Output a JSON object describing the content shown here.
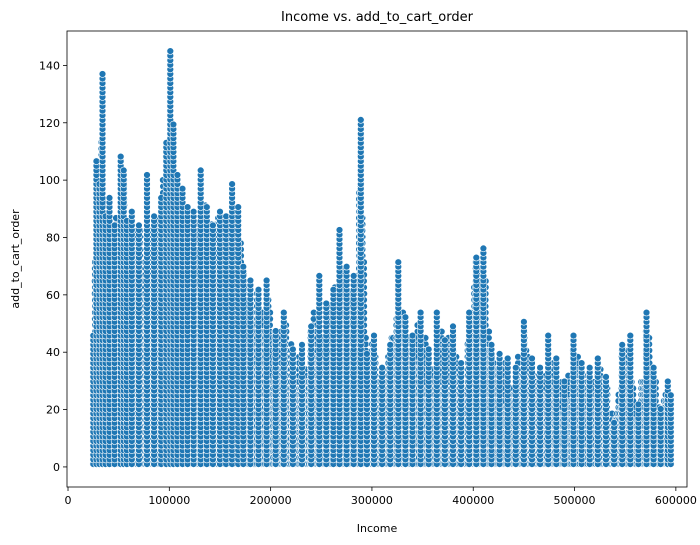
{
  "chart_data": {
    "type": "scatter",
    "title": "Income vs. add_to_cart_order",
    "xlabel": "Income",
    "ylabel": "add_to_cart_order",
    "xlim": [
      -1000,
      611000
    ],
    "ylim": [
      -7,
      152
    ],
    "xticks": [
      0,
      100000,
      200000,
      300000,
      400000,
      500000,
      600000
    ],
    "xtick_labels": [
      "0",
      "100000",
      "200000",
      "300000",
      "400000",
      "500000",
      "600000"
    ],
    "yticks": [
      0,
      20,
      40,
      60,
      80,
      100,
      120,
      140
    ],
    "ytick_labels": [
      "0",
      "20",
      "40",
      "60",
      "80",
      "100",
      "120",
      "140"
    ],
    "grid": false,
    "marker_color": "#1f77b4",
    "marker_edge_color": "#ffffff",
    "series_max_profile": {
      "x": [
        25000,
        28000,
        31000,
        34000,
        37000,
        41000,
        46000,
        52000,
        55000,
        58000,
        63000,
        70000,
        78000,
        85000,
        92000,
        97000,
        101000,
        104000,
        108000,
        113000,
        118000,
        124000,
        131000,
        137000,
        143000,
        150000,
        156000,
        162000,
        168000,
        173000,
        180000,
        188000,
        196000,
        205000,
        213000,
        222000,
        231000,
        240000,
        248000,
        255000,
        262000,
        268000,
        275000,
        282000,
        289000,
        295000,
        302000,
        310000,
        318000,
        326000,
        333000,
        340000,
        348000,
        356000,
        364000,
        372000,
        380000,
        388000,
        396000,
        403000,
        410000,
        418000,
        426000,
        434000,
        442000,
        450000,
        458000,
        466000,
        474000,
        482000,
        490000,
        499000,
        507000,
        515000,
        523000,
        531000,
        539000,
        547000,
        555000,
        563000,
        571000,
        578000,
        585000,
        592000,
        595000
      ],
      "y": [
        46,
        108,
        100,
        137,
        88,
        95,
        85,
        109,
        104,
        86,
        90,
        85,
        102,
        88,
        95,
        114,
        145,
        120,
        102,
        98,
        92,
        90,
        104,
        92,
        85,
        90,
        88,
        99,
        92,
        70,
        66,
        62,
        66,
        48,
        55,
        42,
        44,
        50,
        67,
        58,
        62,
        83,
        70,
        68,
        121,
        40,
        47,
        36,
        43,
        73,
        53,
        46,
        54,
        42,
        55,
        45,
        50,
        37,
        54,
        74,
        77,
        43,
        40,
        38,
        36,
        52,
        38,
        36,
        46,
        38,
        30,
        46,
        37,
        35,
        38,
        33,
        16,
        43,
        47,
        23,
        55,
        36,
        21,
        31,
        26
      ]
    }
  }
}
